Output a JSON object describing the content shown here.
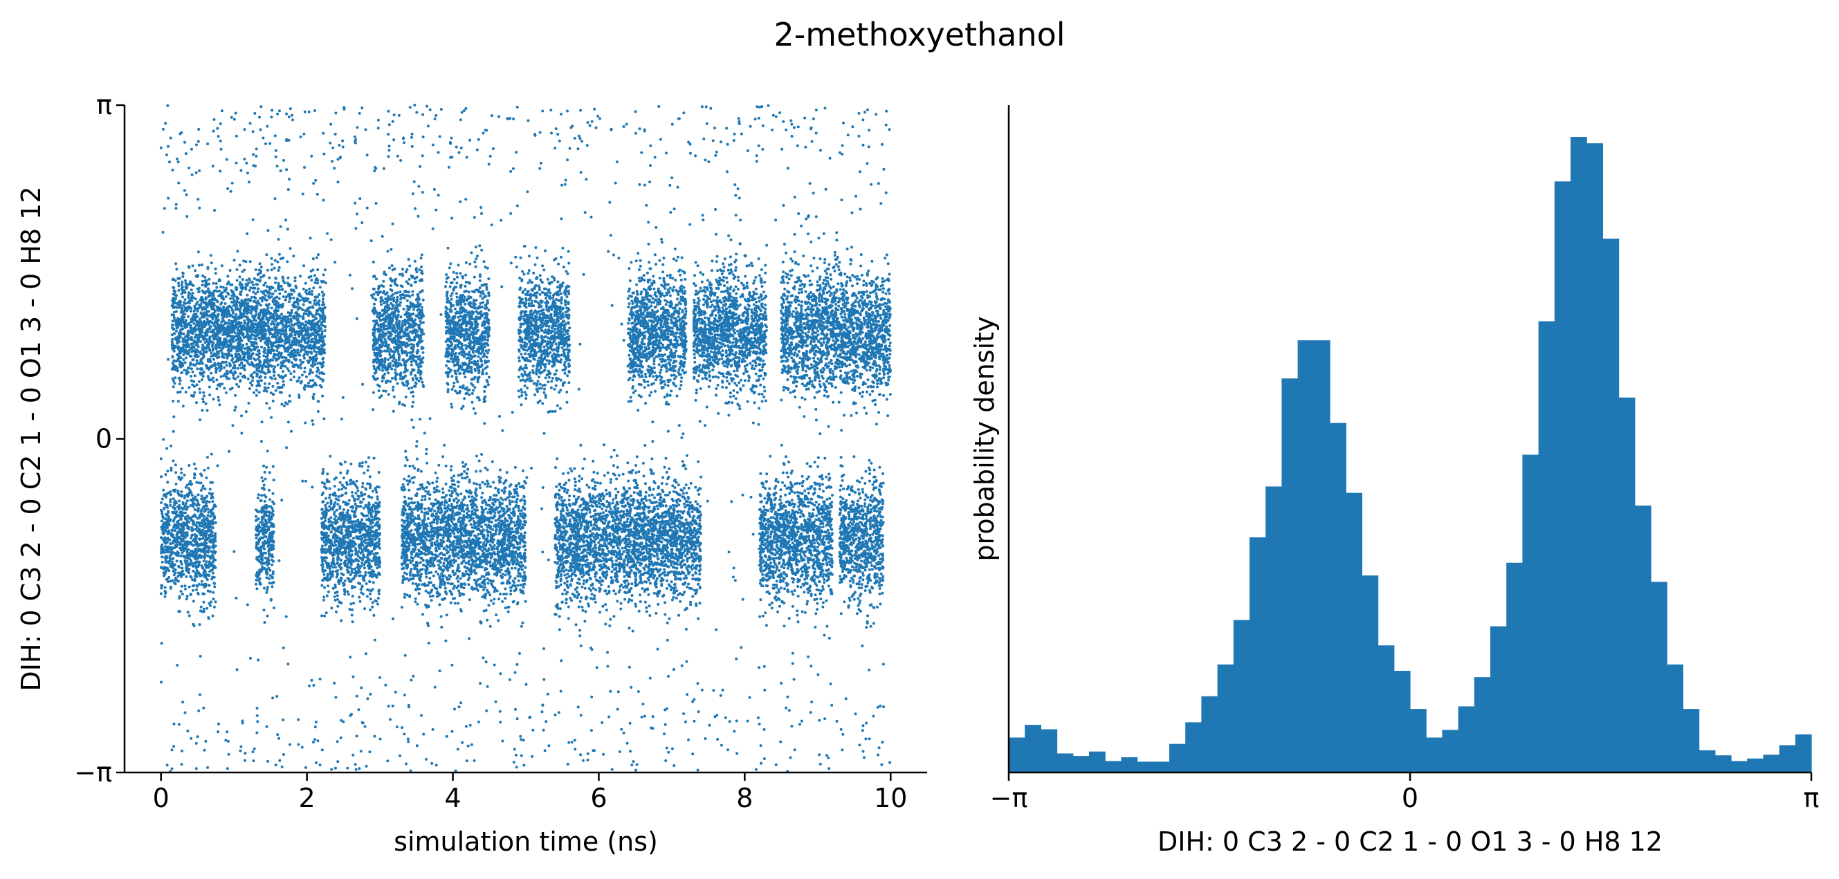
{
  "title": "2-methoxyethanol",
  "colors": {
    "series": "#1f77b4",
    "axis": "#000000",
    "background": "#ffffff"
  },
  "chart_data": [
    {
      "type": "scatter",
      "title": "",
      "xlabel": "simulation time (ns)",
      "ylabel": "DIH:  0 C3 2 -  0 C2 1 -  0 O1 3 -  0 H8 12",
      "xlim": [
        -0.5,
        10.5
      ],
      "ylim": [
        -3.14159,
        3.14159
      ],
      "x_ticks": [
        0,
        2,
        4,
        6,
        8,
        10
      ],
      "x_tick_labels": [
        "0",
        "2",
        "4",
        "6",
        "8",
        "10"
      ],
      "y_ticks": [
        -3.14159,
        0,
        3.14159
      ],
      "y_tick_labels": [
        "−π",
        "0",
        "π"
      ],
      "grid": false,
      "marker_size": 2,
      "series": [
        {
          "points_note": "approximate dense point cloud (dihedral vs time)",
          "segments": [
            {
              "t": [
                0.0,
                0.75
              ],
              "state": "neg"
            },
            {
              "t": [
                0.15,
                0.75
              ],
              "state": "pos"
            },
            {
              "t": [
                0.75,
                2.25
              ],
              "state": "pos"
            },
            {
              "t": [
                1.3,
                1.55
              ],
              "state": "neg"
            },
            {
              "t": [
                2.2,
                3.0
              ],
              "state": "neg"
            },
            {
              "t": [
                2.9,
                3.6
              ],
              "state": "pos"
            },
            {
              "t": [
                3.3,
                5.0
              ],
              "state": "neg"
            },
            {
              "t": [
                3.9,
                4.5
              ],
              "state": "pos"
            },
            {
              "t": [
                4.9,
                5.6
              ],
              "state": "pos"
            },
            {
              "t": [
                5.4,
                6.8
              ],
              "state": "neg"
            },
            {
              "t": [
                6.4,
                7.2
              ],
              "state": "pos"
            },
            {
              "t": [
                6.8,
                7.4
              ],
              "state": "neg"
            },
            {
              "t": [
                7.3,
                8.3
              ],
              "state": "pos"
            },
            {
              "t": [
                8.2,
                9.2
              ],
              "state": "neg"
            },
            {
              "t": [
                8.5,
                10.0
              ],
              "state": "pos"
            },
            {
              "t": [
                9.3,
                9.9
              ],
              "state": "neg"
            }
          ],
          "cluster_centers": {
            "pos": 1.0,
            "neg": -0.95
          },
          "cluster_spread": 0.28
        }
      ]
    },
    {
      "type": "bar",
      "title": "",
      "xlabel": "DIH:  0 C3 2 -  0 C2 1 -  0 O1 3 -  0 H8 12",
      "ylabel": "probability density",
      "xlim": [
        -3.14159,
        3.14159
      ],
      "x_ticks": [
        -3.14159,
        0,
        3.14159
      ],
      "x_tick_labels": [
        "−π",
        "0",
        "π"
      ],
      "y_ticks": [],
      "grid": false,
      "bins": 50,
      "values": [
        0.055,
        0.075,
        0.068,
        0.03,
        0.026,
        0.033,
        0.018,
        0.024,
        0.017,
        0.017,
        0.045,
        0.079,
        0.12,
        0.17,
        0.24,
        0.37,
        0.45,
        0.62,
        0.68,
        0.68,
        0.55,
        0.44,
        0.31,
        0.2,
        0.16,
        0.1,
        0.055,
        0.067,
        0.104,
        0.15,
        0.23,
        0.33,
        0.5,
        0.71,
        0.93,
        1.0,
        0.99,
        0.84,
        0.59,
        0.42,
        0.3,
        0.17,
        0.1,
        0.035,
        0.027,
        0.018,
        0.022,
        0.028,
        0.043,
        0.06
      ]
    }
  ]
}
